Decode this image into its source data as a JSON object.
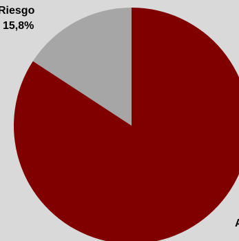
{
  "chart_data": {
    "type": "pie",
    "slices": [
      {
        "label_lines": [
          "Riesgo",
          "15,8%"
        ],
        "value": 15.8,
        "color": "#a6a6a6"
      },
      {
        "label_lines": [
          "A"
        ],
        "value": 84.2,
        "color": "#800000"
      }
    ],
    "start_angle_deg": 0,
    "direction": "counterclockwise"
  }
}
